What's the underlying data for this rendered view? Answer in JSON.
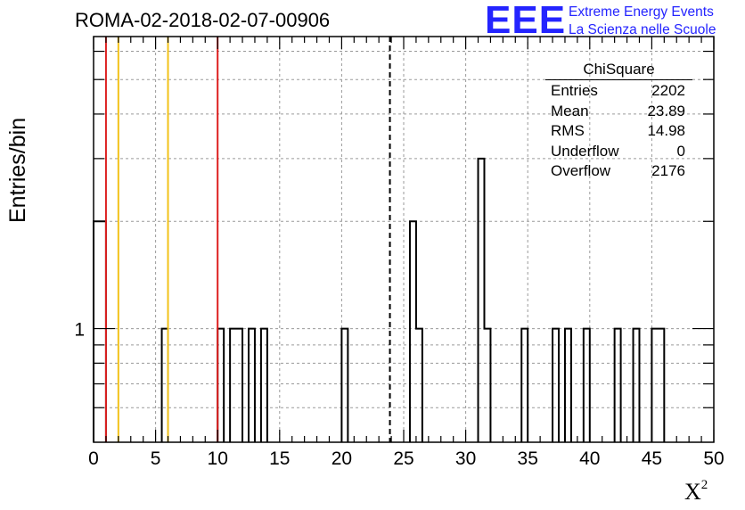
{
  "title": "ROMA-02-2018-02-07-00906",
  "logo": {
    "mark": "EEE",
    "line1": "Extreme Energy Events",
    "line2": "La Scienza nelle Scuole",
    "color": "#2424ff"
  },
  "stats": {
    "title": "ChiSquare",
    "rows": [
      {
        "label": "Entries",
        "value": "2202"
      },
      {
        "label": "Mean",
        "value": "23.89"
      },
      {
        "label": "RMS",
        "value": "14.98"
      },
      {
        "label": "Underflow",
        "value": "0"
      },
      {
        "label": "Overflow",
        "value": "2176"
      }
    ]
  },
  "chart_data": {
    "type": "bar",
    "title": "ROMA-02-2018-02-07-00906",
    "xlabel": "X",
    "xlabel_superscript": "2",
    "ylabel": "Entries/bin",
    "y_scale": "log",
    "xlim": [
      0,
      50
    ],
    "ylim": [
      0.48,
      6.6
    ],
    "bin_width": 0.5,
    "grid": true,
    "legend": "top-right stats box",
    "x_ticks": [
      0,
      5,
      10,
      15,
      20,
      25,
      30,
      35,
      40,
      45,
      50
    ],
    "y_tick_labels": [
      {
        "value": 1,
        "label": "1"
      }
    ],
    "bins": [
      {
        "x": 0.0,
        "count": 2
      },
      {
        "x": 0.5,
        "count": 2
      },
      {
        "x": 5.5,
        "count": 1
      },
      {
        "x": 10.0,
        "count": 1
      },
      {
        "x": 11.0,
        "count": 1
      },
      {
        "x": 11.5,
        "count": 1
      },
      {
        "x": 12.5,
        "count": 1
      },
      {
        "x": 13.5,
        "count": 1
      },
      {
        "x": 20.0,
        "count": 1
      },
      {
        "x": 25.5,
        "count": 2
      },
      {
        "x": 26.0,
        "count": 1
      },
      {
        "x": 31.0,
        "count": 3
      },
      {
        "x": 31.5,
        "count": 1
      },
      {
        "x": 34.5,
        "count": 1
      },
      {
        "x": 37.0,
        "count": 1
      },
      {
        "x": 38.0,
        "count": 1
      },
      {
        "x": 39.5,
        "count": 1
      },
      {
        "x": 42.0,
        "count": 1
      },
      {
        "x": 43.5,
        "count": 1
      },
      {
        "x": 45.0,
        "count": 1
      },
      {
        "x": 45.5,
        "count": 1
      }
    ],
    "reference_lines": [
      {
        "x": 1.0,
        "color": "#dd1f1f",
        "style": "solid"
      },
      {
        "x": 2.0,
        "color": "#f2c21a",
        "style": "solid"
      },
      {
        "x": 6.0,
        "color": "#f2c21a",
        "style": "solid"
      },
      {
        "x": 10.0,
        "color": "#dd1f1f",
        "style": "solid"
      },
      {
        "x": 23.89,
        "color": "#000000",
        "style": "dashed"
      }
    ]
  }
}
